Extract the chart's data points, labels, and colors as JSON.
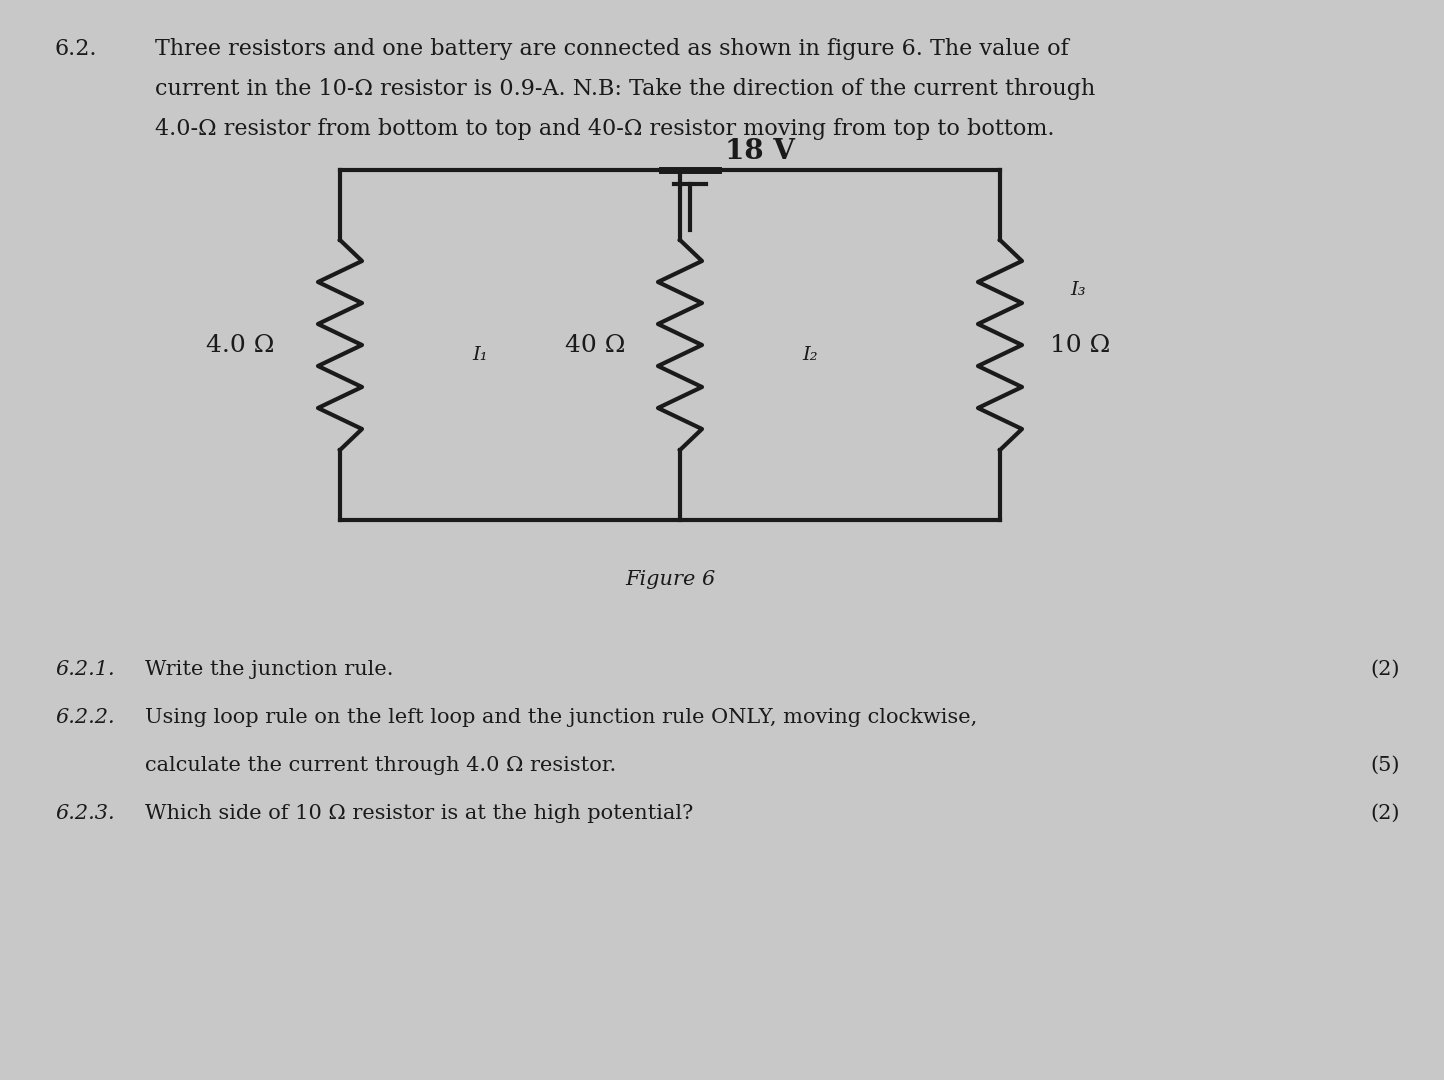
{
  "background_color": "#c8c8c8",
  "title_number": "6.2.",
  "title_text_line1": "Three resistors and one battery are connected as shown in figure 6. The value of",
  "title_text_line2": "current in the 10-Ω resistor is 0.9-A. N.B: Take the direction of the current through",
  "title_text_line3": "4.0-Ω resistor from bottom to top and 40-Ω resistor moving from top to bottom.",
  "circuit_label": "Figure 6",
  "battery_label": "18 V",
  "r1_label": "4.0 Ω",
  "r2_label": "40 Ω",
  "r3_label": "10 Ω",
  "i1_label": "I₁",
  "i2_label": "I₂",
  "i3_label": "I₃",
  "q621_num": "6.2.1.",
  "q621_text": "Write the junction rule.",
  "q621_marks": "(2)",
  "q622_num": "6.2.2.",
  "q622_text": "Using loop rule on the left loop and the junction rule ONLY, moving clockwise,",
  "q622_text2": "calculate the current through 4.0 Ω resistor.",
  "q622_marks": "(5)",
  "q623_num": "6.2.3.",
  "q623_text": "Which side of 10 Ω resistor is at the high potential?",
  "q623_marks": "(2)",
  "font_color": "#1a1a1a",
  "circuit_color": "#1a1a1a",
  "wire_lw": 2.5
}
